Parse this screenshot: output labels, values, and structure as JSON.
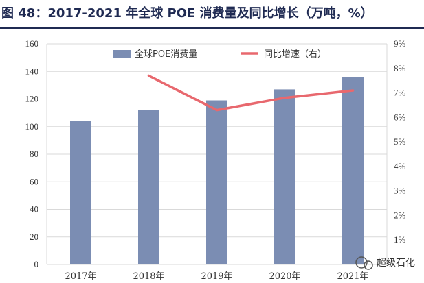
{
  "title": "图 48：2017-2021 年全球 POE 消费量及同比增长（万吨，%）",
  "watermark": "超级石化",
  "colors": {
    "bar": "#7b8db3",
    "line": "#e8686e",
    "title": "#1f2a52",
    "grid": "#d9d9d9"
  },
  "chart_data": {
    "type": "bar+line",
    "categories": [
      "2017年",
      "2018年",
      "2019年",
      "2020年",
      "2021年"
    ],
    "series": [
      {
        "name": "全球POE消费量",
        "type": "bar",
        "axis": "left",
        "values": [
          104,
          112,
          119,
          127,
          136
        ]
      },
      {
        "name": "同比增速（右）",
        "type": "line",
        "axis": "right",
        "values": [
          null,
          7.7,
          6.3,
          6.8,
          7.1
        ]
      }
    ],
    "ylim_left": [
      0,
      160
    ],
    "yticks_left": [
      0,
      20,
      40,
      60,
      80,
      100,
      120,
      140,
      160
    ],
    "ylim_right": [
      0,
      9
    ],
    "yticks_right": [
      "1%",
      "2%",
      "3%",
      "4%",
      "5%",
      "6%",
      "7%",
      "8%",
      "9%"
    ],
    "legend_position": "top-center",
    "grid": "horizontal"
  }
}
